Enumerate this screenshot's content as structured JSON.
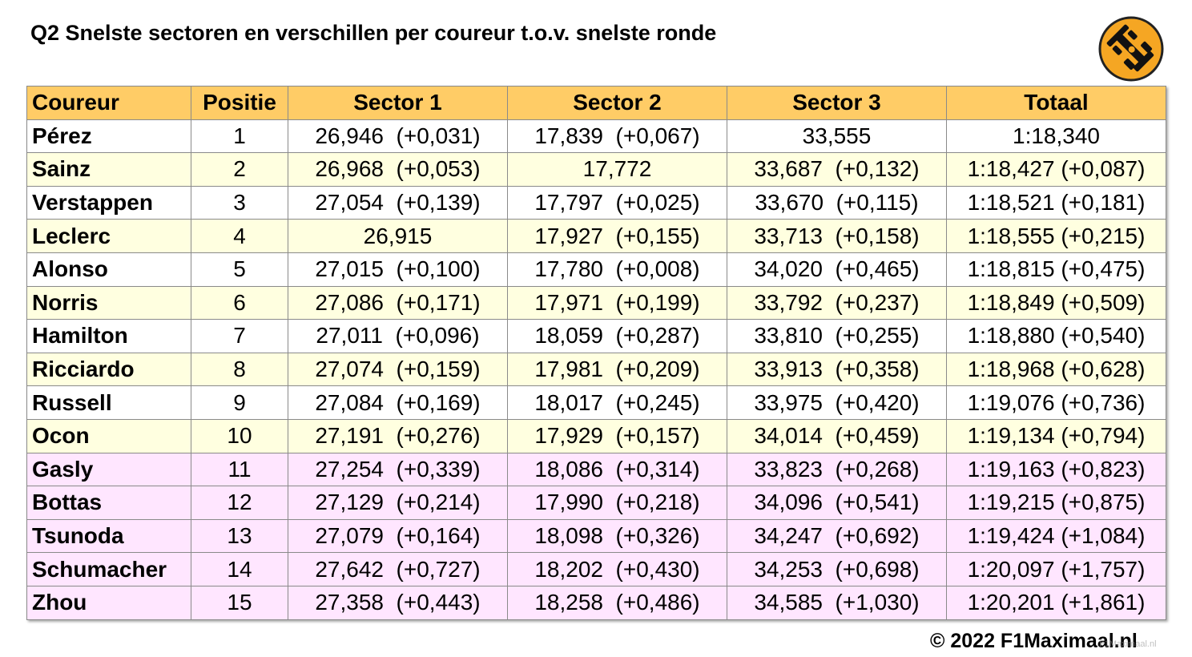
{
  "title": "Q2 Snelste sectoren en verschillen per coureur t.o.v. snelste ronde",
  "logo": {
    "icon": "racing-car-icon",
    "color": "#f5a623"
  },
  "colors": {
    "header": "#ffcc66",
    "white": "#ffffff",
    "cream": "#ffffe0",
    "pink": "#ffe6ff"
  },
  "chart_data": {
    "type": "table",
    "columns": [
      "Coureur",
      "Positie",
      "Sector 1",
      "Sector 2",
      "Sector 3",
      "Totaal"
    ],
    "rows": [
      {
        "bg": "white",
        "cells": [
          "Pérez",
          "1",
          "26,946  (+0,031)",
          "17,839  (+0,067)",
          "33,555",
          "1:18,340"
        ]
      },
      {
        "bg": "cream",
        "cells": [
          "Sainz",
          "2",
          "26,968  (+0,053)",
          "17,772",
          "33,687  (+0,132)",
          "1:18,427 (+0,087)"
        ]
      },
      {
        "bg": "white",
        "cells": [
          "Verstappen",
          "3",
          "27,054  (+0,139)",
          "17,797  (+0,025)",
          "33,670  (+0,115)",
          "1:18,521 (+0,181)"
        ]
      },
      {
        "bg": "cream",
        "cells": [
          "Leclerc",
          "4",
          "26,915",
          "17,927  (+0,155)",
          "33,713  (+0,158)",
          "1:18,555 (+0,215)"
        ]
      },
      {
        "bg": "white",
        "cells": [
          "Alonso",
          "5",
          "27,015  (+0,100)",
          "17,780  (+0,008)",
          "34,020  (+0,465)",
          "1:18,815 (+0,475)"
        ]
      },
      {
        "bg": "cream",
        "cells": [
          "Norris",
          "6",
          "27,086  (+0,171)",
          "17,971  (+0,199)",
          "33,792  (+0,237)",
          "1:18,849 (+0,509)"
        ]
      },
      {
        "bg": "white",
        "cells": [
          "Hamilton",
          "7",
          "27,011  (+0,096)",
          "18,059  (+0,287)",
          "33,810  (+0,255)",
          "1:18,880 (+0,540)"
        ]
      },
      {
        "bg": "cream",
        "cells": [
          "Ricciardo",
          "8",
          "27,074  (+0,159)",
          "17,981  (+0,209)",
          "33,913  (+0,358)",
          "1:18,968 (+0,628)"
        ]
      },
      {
        "bg": "white",
        "cells": [
          "Russell",
          "9",
          "27,084  (+0,169)",
          "18,017  (+0,245)",
          "33,975  (+0,420)",
          "1:19,076 (+0,736)"
        ]
      },
      {
        "bg": "cream",
        "cells": [
          "Ocon",
          "10",
          "27,191  (+0,276)",
          "17,929  (+0,157)",
          "34,014  (+0,459)",
          "1:19,134 (+0,794)"
        ]
      },
      {
        "bg": "pink",
        "cells": [
          "Gasly",
          "11",
          "27,254  (+0,339)",
          "18,086  (+0,314)",
          "33,823  (+0,268)",
          "1:19,163 (+0,823)"
        ]
      },
      {
        "bg": "pink",
        "cells": [
          "Bottas",
          "12",
          "27,129  (+0,214)",
          "17,990  (+0,218)",
          "34,096  (+0,541)",
          "1:19,215 (+0,875)"
        ]
      },
      {
        "bg": "pink",
        "cells": [
          "Tsunoda",
          "13",
          "27,079  (+0,164)",
          "18,098  (+0,326)",
          "34,247  (+0,692)",
          "1:19,424 (+1,084)"
        ]
      },
      {
        "bg": "pink",
        "cells": [
          "Schumacher",
          "14",
          "27,642  (+0,727)",
          "18,202  (+0,430)",
          "34,253  (+0,698)",
          "1:20,097 (+1,757)"
        ]
      },
      {
        "bg": "pink",
        "cells": [
          "Zhou",
          "15",
          "27,358  (+0,443)",
          "18,258  (+0,486)",
          "34,585  (+1,030)",
          "1:20,201 (+1,861)"
        ]
      }
    ]
  },
  "footer": {
    "copyright": "© 2022 F1Maximaal.nl",
    "watermark": "F1Maximaal.nl"
  }
}
